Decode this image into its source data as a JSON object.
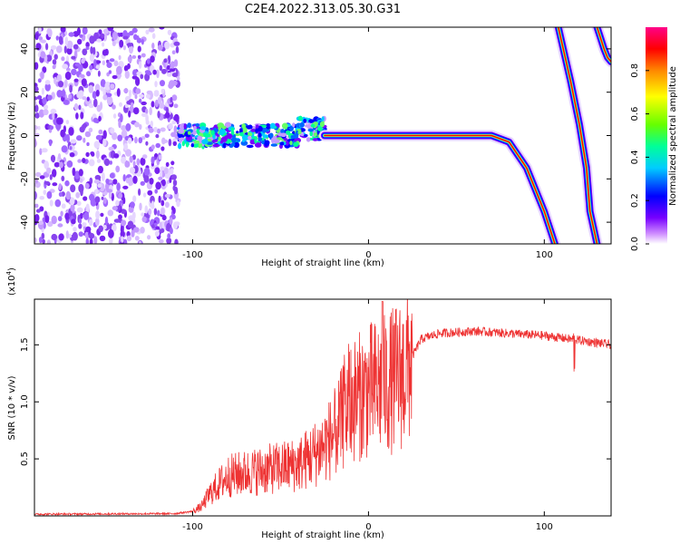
{
  "title": "C2E4.2022.313.05.30.G31",
  "chart_data": [
    {
      "type": "heatmap",
      "xlabel": "Height of straight line (km)",
      "ylabel": "Frequency (Hz)",
      "xlim": [
        -190,
        138
      ],
      "ylim": [
        -50,
        50
      ],
      "xticks": [
        "-100",
        "0",
        "100"
      ],
      "yticks": [
        "-40",
        "-20",
        "0",
        "20",
        "40"
      ],
      "colorbar": {
        "label": "Normalized spectral amplitude",
        "range": [
          0,
          1
        ],
        "ticks": [
          "0.0",
          "0.2",
          "0.4",
          "0.6",
          "0.8"
        ],
        "colors": [
          "#ffffff",
          "#cc88ff",
          "#7700ff",
          "#0000ff",
          "#00ccff",
          "#00ff99",
          "#66ff00",
          "#ffff00",
          "#ff8800",
          "#ff0000",
          "#ff0088"
        ]
      },
      "features": {
        "noise_region_x": [
          -190,
          -108
        ],
        "scatter_band_x": [
          -108,
          -25
        ],
        "main_line": {
          "x": [
            -25,
            0,
            70,
            80,
            90,
            100,
            106
          ],
          "y": [
            0,
            0,
            0,
            -3,
            -15,
            -35,
            -50
          ]
        },
        "upper_lines": [
          {
            "x": [
              108,
              115,
              120,
              122,
              124,
              126,
              130
            ],
            "y": [
              50,
              25,
              5,
              -5,
              -15,
              -35,
              -50
            ]
          },
          {
            "x": [
              130,
              132,
              134,
              136,
              138
            ],
            "y": [
              50,
              45,
              40,
              36,
              34
            ]
          }
        ]
      }
    },
    {
      "type": "line",
      "xlabel": "Height of straight line (km)",
      "ylabel": "SNR (10 * v/v)",
      "yscale_label": "(x10",
      "yscale_exp": "4",
      "yscale_close": ")",
      "xlim": [
        -190,
        138
      ],
      "ylim": [
        0,
        19000
      ],
      "xticks": [
        "-100",
        "0",
        "100"
      ],
      "yticks": [
        "0.5",
        "1.0",
        "1.5"
      ],
      "color": "#ee3333",
      "series_profile": {
        "x": [
          -190,
          -110,
          -100,
          -95,
          -90,
          -80,
          -60,
          -40,
          -30,
          -20,
          -15,
          -10,
          0,
          10,
          20,
          25,
          30,
          40,
          60,
          80,
          100,
          110,
          120,
          138
        ],
        "y": [
          150,
          200,
          400,
          800,
          2000,
          3500,
          4000,
          4500,
          5500,
          7000,
          8500,
          10000,
          11000,
          11500,
          12500,
          14000,
          15500,
          16000,
          16200,
          16000,
          15800,
          15600,
          15400,
          15000
        ]
      }
    }
  ]
}
